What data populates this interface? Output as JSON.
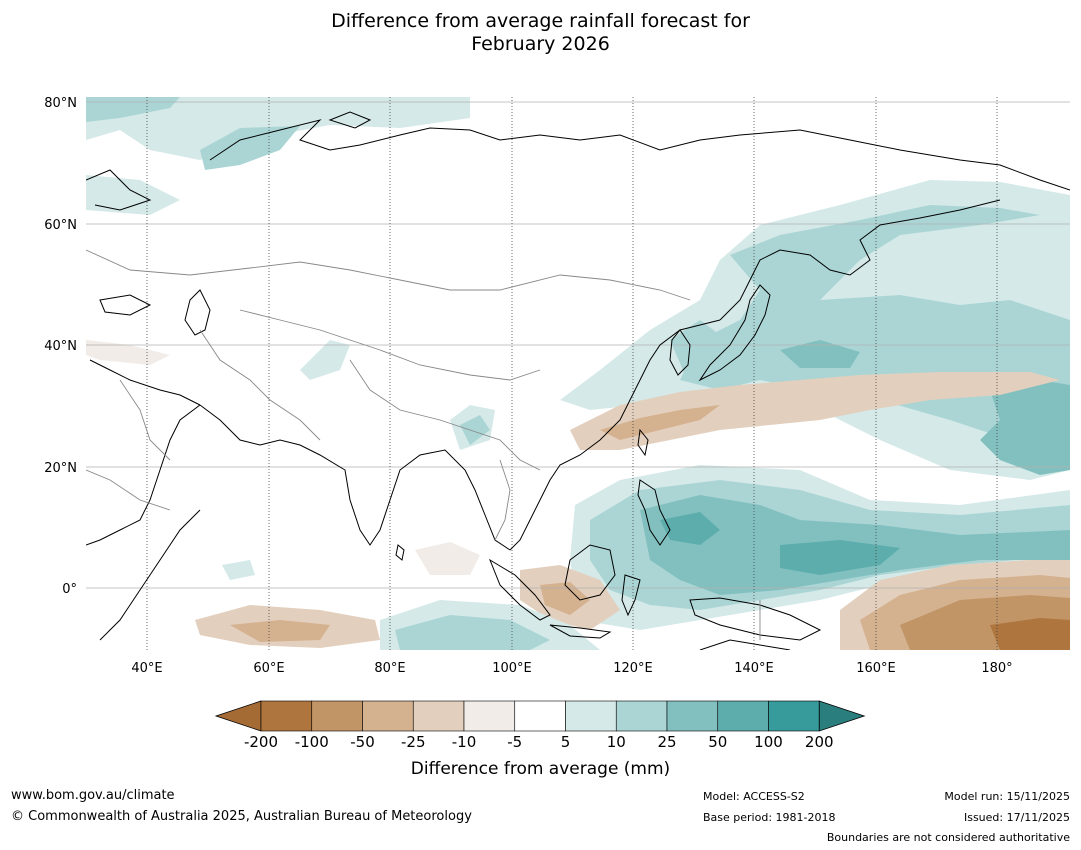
{
  "title": {
    "line1": "Difference from average rainfall forecast for",
    "line2": "February 2026"
  },
  "map": {
    "lat_labels": [
      "80°N",
      "60°N",
      "40°N",
      "20°N",
      "0°"
    ],
    "lon_labels": [
      "40°E",
      "60°E",
      "80°E",
      "100°E",
      "120°E",
      "140°E",
      "160°E",
      "180°"
    ],
    "lat_values": [
      80,
      60,
      40,
      20,
      0
    ],
    "lon_values": [
      40,
      60,
      80,
      100,
      120,
      140,
      160,
      180
    ],
    "extent": {
      "lon_min": 30,
      "lon_max": 192,
      "lat_min": -10,
      "lat_max": 81
    }
  },
  "colorbar": {
    "title": "Difference from average (mm)",
    "tick_labels": [
      "-200",
      "-100",
      "-50",
      "-25",
      "-10",
      "-5",
      "5",
      "10",
      "25",
      "50",
      "100",
      "200"
    ],
    "colors": [
      "#a56b35",
      "#af753f",
      "#c29566",
      "#d4b18f",
      "#e3cfbd",
      "#f1ece7",
      "#ffffff",
      "#d4e9e8",
      "#abd5d5",
      "#82c0c0",
      "#5eadad",
      "#369b9a",
      "#2a7f7e"
    ]
  },
  "footer": {
    "website": "www.bom.gov.au/climate",
    "copyright": "© Commonwealth of Australia 2025, Australian Bureau of Meteorology",
    "model": "Model: ACCESS-S2",
    "base_period": "Base period: 1981-2018",
    "model_run": "Model run: 15/11/2025",
    "issued": "Issued: 17/11/2025",
    "boundaries": "Boundaries are not considered authoritative"
  }
}
